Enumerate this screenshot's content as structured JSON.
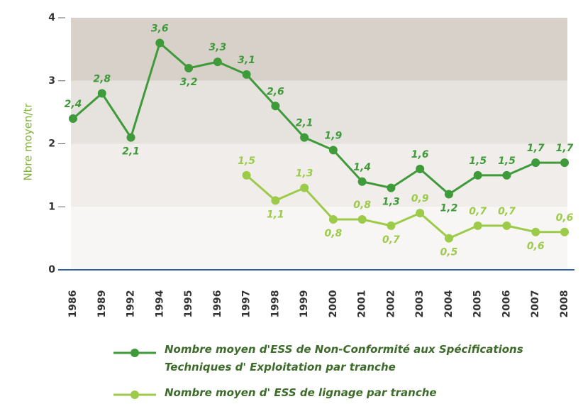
{
  "chart_data": {
    "type": "line",
    "y_label": "Nbre moyen/tr",
    "categories": [
      "1986",
      "1989",
      "1992",
      "1994",
      "1995",
      "1996",
      "1997",
      "1998",
      "1999",
      "2000",
      "2001",
      "2002",
      "2003",
      "2004",
      "2005",
      "2006",
      "2007",
      "2008"
    ],
    "series": [
      {
        "name": "Nombre moyen d'ESS de Non-Conformité aux Spécifications Techniques d' Exploitation par tranche",
        "color": "#3f9a3a",
        "values": [
          2.4,
          2.8,
          2.1,
          3.6,
          3.2,
          3.3,
          3.1,
          2.6,
          2.1,
          1.9,
          1.4,
          1.3,
          1.6,
          1.2,
          1.5,
          1.5,
          1.7,
          1.7
        ],
        "value_labels": [
          "2,4",
          "2,8",
          "2,1",
          "3,6",
          "3,2",
          "3,3",
          "3,1",
          "2,6",
          "2,1",
          "1,9",
          "1,4",
          "1,3",
          "1,6",
          "1,2",
          "1,5",
          "1,5",
          "1,7",
          "1,7"
        ]
      },
      {
        "name": "Nombre moyen d' ESS de lignage par tranche",
        "color": "#9ccb4a",
        "values": [
          null,
          null,
          null,
          null,
          null,
          null,
          1.5,
          1.1,
          1.3,
          0.8,
          0.8,
          0.7,
          0.9,
          0.5,
          0.7,
          0.7,
          0.6,
          0.6
        ],
        "value_labels": [
          null,
          null,
          null,
          null,
          null,
          null,
          "1,5",
          "1,1",
          "1,3",
          "0,8",
          "0,8",
          "0,7",
          "0,9",
          "0,5",
          "0,7",
          "0,7",
          "0,6",
          "0,6"
        ]
      }
    ],
    "ylim": [
      0,
      4
    ],
    "yticks": [
      0,
      1,
      2,
      3,
      4
    ],
    "grid": false
  }
}
